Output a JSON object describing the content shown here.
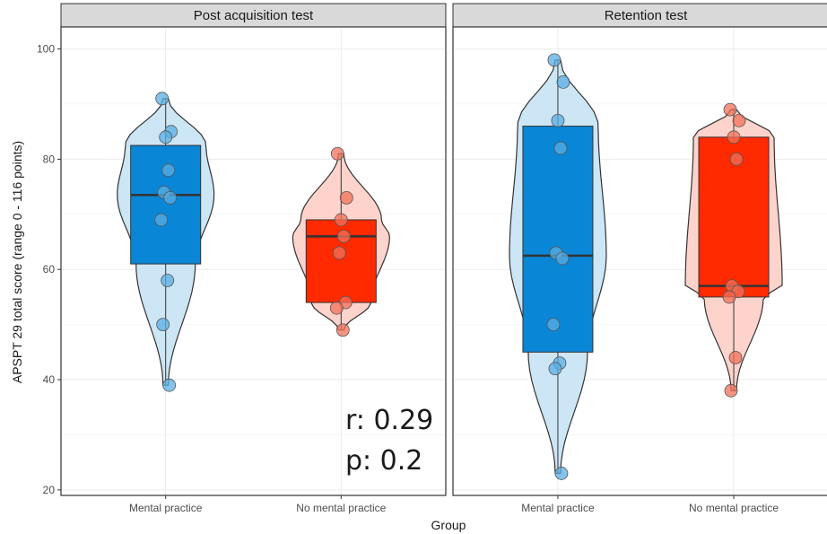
{
  "chart_data": {
    "type": "violin",
    "xlabel": "Group",
    "ylabel": "APSPT 29 total score (range 0 - 116 points)",
    "ylim": [
      19,
      104
    ],
    "yticks": [
      20,
      40,
      60,
      80,
      100
    ],
    "grid": true,
    "categories": [
      "Mental practice",
      "No mental practice"
    ],
    "colors": {
      "Mental practice": {
        "fill": "#0a86d6",
        "violin": "#cde6f5",
        "point": "#5aaee3"
      },
      "No mental practice": {
        "fill": "#ff2a00",
        "violin": "#fdd3cc",
        "point": "#f2705a"
      }
    },
    "panels": [
      {
        "title": "Post acquisition test",
        "groups": [
          {
            "name": "Mental practice",
            "min": 39,
            "q1": 61,
            "median": 73.5,
            "q3": 82.5,
            "max": 91,
            "points": [
              91,
              85,
              84,
              78,
              74,
              73,
              69,
              58,
              50,
              39
            ]
          },
          {
            "name": "No mental practice",
            "min": 49,
            "q1": 54,
            "median": 66,
            "q3": 69,
            "max": 81,
            "points": [
              81,
              73,
              69,
              66,
              63,
              54,
              53,
              49
            ]
          }
        ],
        "annotation": {
          "r": "r:  0.29",
          "p": "p: 0.2"
        }
      },
      {
        "title": "Retention test",
        "groups": [
          {
            "name": "Mental practice",
            "min": 23,
            "q1": 45,
            "median": 62.5,
            "q3": 86,
            "max": 98,
            "points": [
              98,
              94,
              87,
              82,
              63,
              62,
              50,
              43,
              42,
              23
            ]
          },
          {
            "name": "No mental practice",
            "min": 38,
            "q1": 55,
            "median": 57,
            "q3": 84,
            "max": 89,
            "points": [
              89,
              87,
              84,
              80,
              57,
              56,
              55,
              44,
              38
            ]
          }
        ]
      }
    ]
  }
}
